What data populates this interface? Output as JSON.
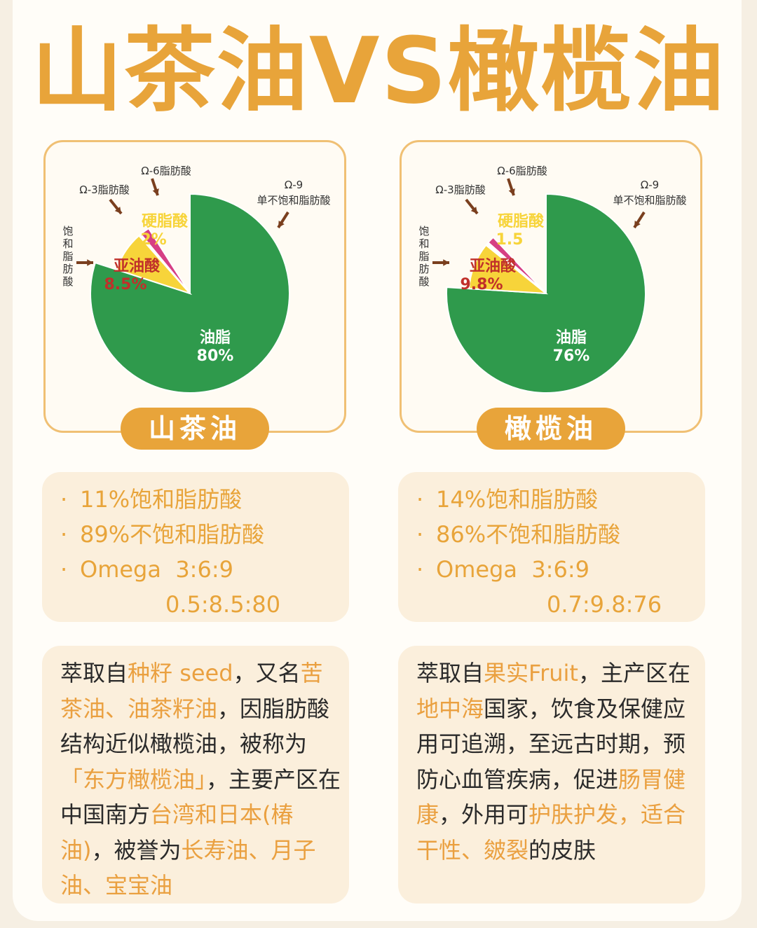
{
  "title": "山茶油VS橄榄油",
  "legend_labels": {
    "omega3": "Ω-3脂肪酸",
    "omega6": "Ω-6脂肪酸",
    "omega9_line1": "Ω-9",
    "omega9_line2": "单不饱和脂肪酸",
    "saturated": "饱和脂肪酸"
  },
  "colors": {
    "green": "#2f9a4c",
    "yellow": "#f7d43a",
    "pink": "#d63f84",
    "accent": "#e8a43a"
  },
  "chart_data": [
    {
      "type": "pie",
      "title": "山茶油",
      "slices": [
        {
          "label": "油脂",
          "display": "80%",
          "value": 80,
          "color": "#2f9a4c"
        },
        {
          "label": "亚油酸",
          "display": "8.5%",
          "value": 8.5,
          "color": "#f7d43a"
        },
        {
          "label": "",
          "display": "",
          "value": 0.5,
          "color": "#ffffff"
        },
        {
          "label": "硬脂酸",
          "display": "2%",
          "value": 2,
          "color": "#d63f84"
        }
      ],
      "omitted_saturated": 9
    },
    {
      "type": "pie",
      "title": "橄榄油",
      "slices": [
        {
          "label": "油脂",
          "display": "76%",
          "value": 76,
          "color": "#2f9a4c"
        },
        {
          "label": "亚油酸",
          "display": "9.8%",
          "value": 9.8,
          "color": "#f7d43a"
        },
        {
          "label": "",
          "display": "",
          "value": 0.7,
          "color": "#ffffff"
        },
        {
          "label": "硬脂酸",
          "display": "1.5",
          "value": 1.5,
          "color": "#d63f84"
        }
      ],
      "omitted_saturated": 12
    }
  ],
  "left": {
    "name": "山茶油",
    "stats": [
      "11%饱和脂肪酸",
      "89%不饱和脂肪酸",
      "Omega  3:6:9",
      "0.5:8.5:80"
    ]
  },
  "right": {
    "name": "橄榄油",
    "stats": [
      "14%饱和脂肪酸",
      "86%不饱和脂肪酸",
      "Omega  3:6:9",
      "0.7:9.8:76"
    ]
  },
  "left_desc": [
    {
      "t": "萃取自"
    },
    {
      "t": "种籽 seed",
      "h": true
    },
    {
      "t": "，又名"
    },
    {
      "t": "苦茶油、油茶籽油",
      "h": true
    },
    {
      "t": "，因脂肪酸结构近似橄榄油，被称为"
    },
    {
      "t": "「东方橄榄油」",
      "h": true
    },
    {
      "t": "，主要产区在中国南方"
    },
    {
      "t": "台湾和日本(椿油)",
      "h": true
    },
    {
      "t": "，被誉为"
    },
    {
      "t": "长寿油、月子油、宝宝油",
      "h": true
    }
  ],
  "right_desc": [
    {
      "t": "萃取自"
    },
    {
      "t": "果实Fruit",
      "h": true
    },
    {
      "t": "，主产区在"
    },
    {
      "t": "地中海",
      "h": true
    },
    {
      "t": "国家，饮食及保健应用可追溯，至远古时期，预防心血管疾病，促进"
    },
    {
      "t": "肠胃健康",
      "h": true
    },
    {
      "t": "，外用可"
    },
    {
      "t": "护肤护发，适合干性、皴裂",
      "h": true
    },
    {
      "t": "的皮肤"
    }
  ]
}
